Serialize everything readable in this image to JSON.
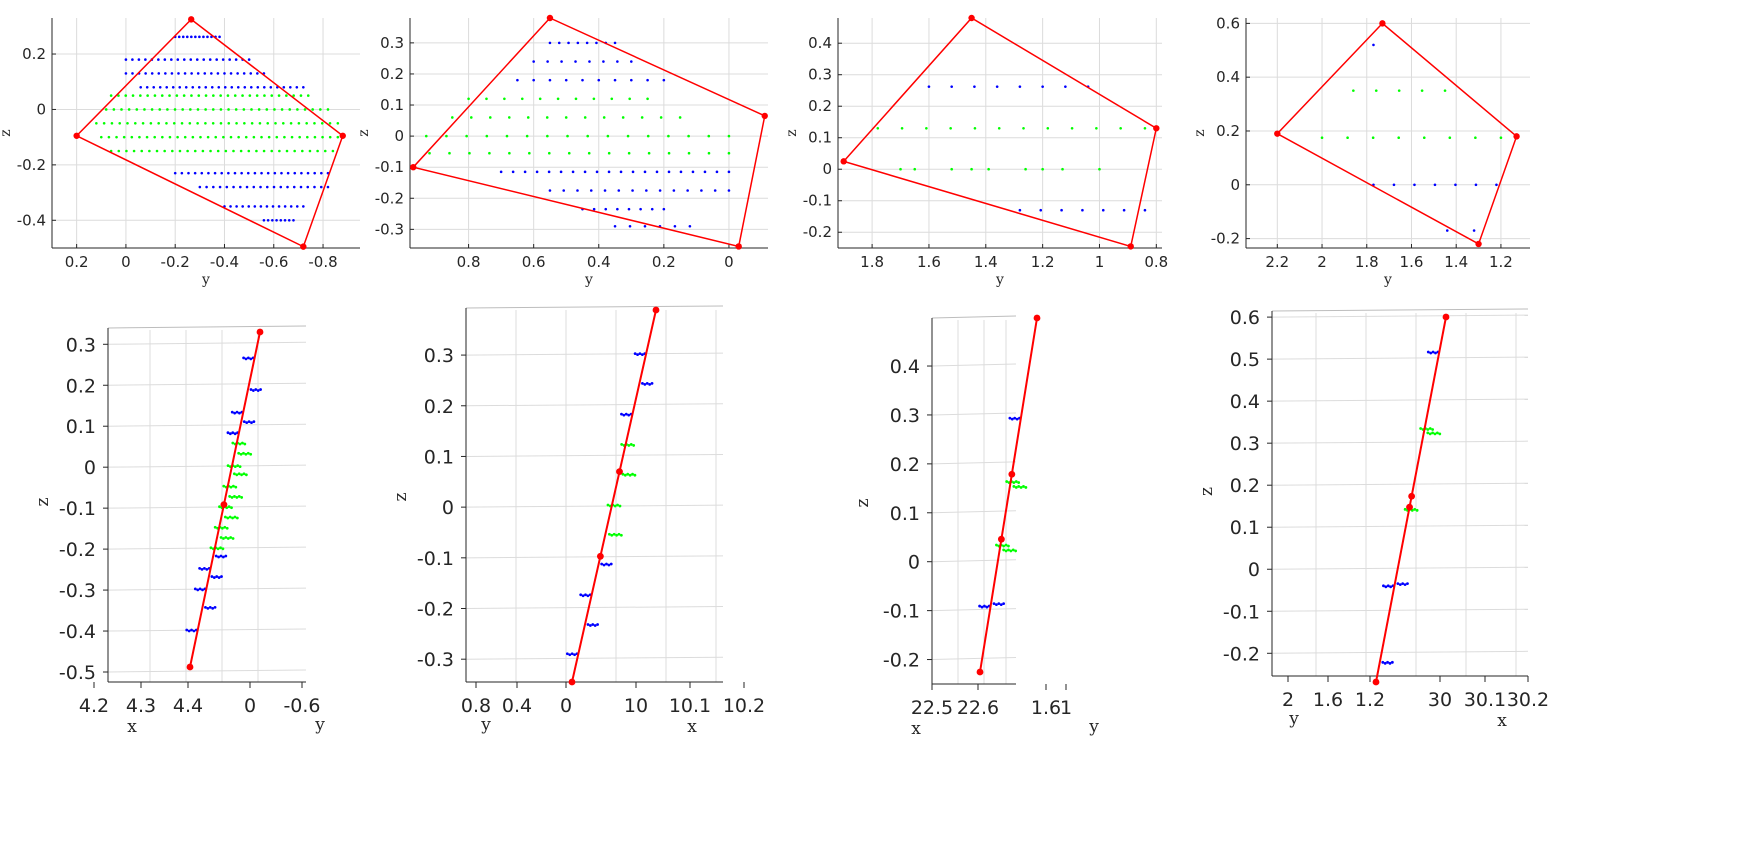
{
  "colors": {
    "hull": "#ff0000",
    "blue_points": "#0000ff",
    "green_points": "#00ff00",
    "axis": "#262626",
    "grid": "#dcdcdc"
  },
  "chart_data": [
    {
      "panel": "top-1",
      "type": "scatter",
      "title": "",
      "xlabel": "y",
      "ylabel": "z",
      "xlim": [
        0.3,
        -0.95
      ],
      "ylim": [
        -0.5,
        0.33
      ],
      "xticks": [
        0.2,
        0,
        -0.2,
        -0.4,
        -0.6,
        -0.8
      ],
      "xtick_labels": [
        "0.2",
        "0",
        "-0.2",
        "-0.4",
        "-0.6",
        "-0.8"
      ],
      "yticks": [
        0.2,
        0,
        -0.2,
        -0.4
      ],
      "ytick_labels": [
        "0.2",
        "0",
        "-0.2",
        "-0.4"
      ],
      "grid": true,
      "hull": [
        [
          0.2,
          -0.095
        ],
        [
          -0.265,
          0.325
        ],
        [
          -0.88,
          -0.095
        ],
        [
          -0.72,
          -0.495
        ]
      ],
      "blue_rows": [
        [
          0.262,
          -0.2,
          -0.38,
          12
        ],
        [
          0.18,
          0.0,
          -0.5,
          20
        ],
        [
          0.13,
          0.0,
          -0.56,
          22
        ],
        [
          0.08,
          -0.06,
          -0.72,
          26
        ],
        [
          -0.23,
          -0.2,
          -0.82,
          24
        ],
        [
          -0.28,
          -0.3,
          -0.82,
          20
        ],
        [
          -0.35,
          -0.4,
          -0.72,
          14
        ],
        [
          -0.4,
          -0.56,
          -0.68,
          8
        ]
      ],
      "green_rows": [
        [
          0.05,
          0.06,
          -0.74,
          28
        ],
        [
          0.0,
          0.08,
          -0.82,
          30
        ],
        [
          -0.05,
          0.12,
          -0.86,
          32
        ],
        [
          -0.1,
          0.1,
          -0.86,
          32
        ],
        [
          -0.15,
          0.06,
          -0.84,
          30
        ]
      ]
    },
    {
      "panel": "top-2",
      "type": "scatter",
      "title": "",
      "xlabel": "y",
      "ylabel": "z",
      "xlim": [
        0.98,
        -0.12
      ],
      "ylim": [
        -0.36,
        0.38
      ],
      "xticks": [
        0.8,
        0.6,
        0.4,
        0.2,
        0
      ],
      "xtick_labels": [
        "0.8",
        "0.6",
        "0.4",
        "0.2",
        "0"
      ],
      "yticks": [
        0.3,
        0.2,
        0.1,
        0,
        -0.1,
        -0.2,
        -0.3
      ],
      "ytick_labels": [
        "0.3",
        "0.2",
        "0.1",
        "0",
        "-0.1",
        "-0.2",
        "-0.3"
      ],
      "grid": true,
      "hull": [
        [
          0.97,
          -0.1
        ],
        [
          0.55,
          0.38
        ],
        [
          -0.11,
          0.065
        ],
        [
          -0.03,
          -0.355
        ]
      ],
      "blue_rows": [
        [
          0.3,
          0.55,
          0.35,
          8
        ],
        [
          0.24,
          0.6,
          0.3,
          8
        ],
        [
          0.18,
          0.65,
          0.2,
          10
        ],
        [
          -0.115,
          0.7,
          0.0,
          20
        ],
        [
          -0.175,
          0.55,
          0.0,
          14
        ],
        [
          -0.235,
          0.45,
          0.2,
          8
        ],
        [
          -0.29,
          0.35,
          0.12,
          6
        ]
      ],
      "green_rows": [
        [
          0.12,
          0.8,
          0.25,
          11
        ],
        [
          0.06,
          0.85,
          0.15,
          13
        ],
        [
          0.0,
          0.93,
          0.0,
          16
        ],
        [
          -0.055,
          0.92,
          0.0,
          16
        ]
      ]
    },
    {
      "panel": "top-3",
      "type": "scatter",
      "title": "",
      "xlabel": "y",
      "ylabel": "z",
      "xlim": [
        1.92,
        0.78
      ],
      "ylim": [
        -0.25,
        0.48
      ],
      "xticks": [
        1.8,
        1.6,
        1.4,
        1.2,
        1,
        0.8
      ],
      "xtick_labels": [
        "1.8",
        "1.6",
        "1.4",
        "1.2",
        "1",
        "0.8"
      ],
      "yticks": [
        0.4,
        0.3,
        0.2,
        0.1,
        0,
        -0.1,
        -0.2
      ],
      "ytick_labels": [
        "0.4",
        "0.3",
        "0.2",
        "0.1",
        "0",
        "-0.1",
        "-0.2"
      ],
      "grid": true,
      "hull": [
        [
          1.9,
          0.025
        ],
        [
          1.45,
          0.48
        ],
        [
          0.8,
          0.13
        ],
        [
          0.89,
          -0.245
        ]
      ],
      "blue_rows": [
        [
          0.262,
          1.6,
          1.04,
          8
        ],
        [
          -0.13,
          1.28,
          0.84,
          7
        ]
      ],
      "green_rows": [
        [
          0.13,
          1.78,
          0.84,
          12
        ],
        [
          0.0,
          1.7,
          1.2,
          3
        ],
        [
          0.0,
          1.65,
          1.0,
          6
        ]
      ]
    },
    {
      "panel": "top-4",
      "type": "scatter",
      "title": "",
      "xlabel": "y",
      "ylabel": "z",
      "xlim": [
        2.34,
        1.07
      ],
      "ylim": [
        -0.235,
        0.62
      ],
      "xticks": [
        2.2,
        2,
        1.8,
        1.6,
        1.4,
        1.2
      ],
      "xtick_labels": [
        "2.2",
        "2",
        "1.8",
        "1.6",
        "1.4",
        "1.2"
      ],
      "yticks": [
        0.6,
        0.4,
        0.2,
        0,
        -0.2
      ],
      "ytick_labels": [
        "0.6",
        "0.4",
        "0.2",
        "0",
        "-0.2"
      ],
      "grid": true,
      "hull": [
        [
          2.2,
          0.19
        ],
        [
          1.73,
          0.6
        ],
        [
          1.13,
          0.18
        ],
        [
          1.3,
          -0.22
        ]
      ],
      "blue_rows": [
        [
          0.52,
          1.77,
          1.77,
          1
        ],
        [
          0.0,
          1.77,
          1.22,
          7
        ],
        [
          -0.17,
          1.44,
          1.32,
          2
        ]
      ],
      "green_rows": [
        [
          0.35,
          1.86,
          1.45,
          5
        ],
        [
          0.175,
          2.0,
          1.2,
          8
        ]
      ]
    },
    {
      "panel": "bottom-1",
      "type": "scatter-3d",
      "title": "",
      "xlabel": "x",
      "ylabel": "y",
      "zlabel": "z",
      "zlim": [
        -0.5,
        0.33
      ],
      "zticks": [
        0.3,
        0.2,
        0.1,
        0,
        -0.1,
        -0.2,
        -0.3,
        -0.4,
        -0.5
      ],
      "ztick_labels": [
        "0.3",
        "0.2",
        "0.1",
        "0",
        "-0.1",
        "-0.2",
        "-0.3",
        "-0.4",
        "-0.5"
      ],
      "xtick_labels": [
        "4.2",
        "4.3",
        "4.4"
      ],
      "ytick_labels": [
        "0",
        "-0.6"
      ],
      "grid": true,
      "line_z": [
        -0.49,
        0.325
      ],
      "line_mid_z": -0.095,
      "blue_z": [
        0.262,
        0.185,
        0.13,
        0.107,
        0.08,
        -0.22,
        -0.25,
        -0.27,
        -0.3,
        -0.345,
        -0.4
      ],
      "green_z": [
        0.055,
        0.03,
        0.0,
        -0.02,
        -0.05,
        -0.075,
        -0.1,
        -0.125,
        -0.15,
        -0.175,
        -0.2
      ]
    },
    {
      "panel": "bottom-2",
      "type": "scatter-3d",
      "title": "",
      "xlabel": "x",
      "ylabel": "y",
      "zlabel": "z",
      "zlim": [
        -0.345,
        0.385
      ],
      "zticks": [
        0.3,
        0.2,
        0.1,
        0,
        -0.1,
        -0.2,
        -0.3
      ],
      "ztick_labels": [
        "0.3",
        "0.2",
        "0.1",
        "0",
        "-0.1",
        "-0.2",
        "-0.3"
      ],
      "ytick_labels": [
        "0.8",
        "0.4",
        "0"
      ],
      "xtick_labels": [
        "10",
        "10.1",
        "10.2"
      ],
      "grid": true,
      "line_z": [
        -0.345,
        0.38
      ],
      "line_mid_z": 0.065,
      "line_low_z": -0.1,
      "blue_z": [
        0.295,
        0.237,
        0.177,
        -0.115,
        -0.175,
        -0.233,
        -0.29
      ],
      "green_z": [
        0.118,
        0.06,
        0.0,
        -0.057
      ]
    },
    {
      "panel": "bottom-3",
      "type": "scatter-3d",
      "title": "",
      "xlabel": "x",
      "ylabel": "y",
      "zlabel": "z",
      "zlim": [
        -0.25,
        0.49
      ],
      "zticks": [
        0.4,
        0.3,
        0.2,
        0.1,
        0,
        -0.1,
        -0.2
      ],
      "ztick_labels": [
        "0.4",
        "0.3",
        "0.2",
        "0.1",
        "0",
        "-0.1",
        "-0.2"
      ],
      "xtick_labels": [
        "22.5",
        "22.6"
      ],
      "ytick_labels": [
        "1.6",
        "1"
      ],
      "grid": true,
      "line_z": [
        -0.245,
        0.48
      ],
      "line_mid_z": 0.16,
      "line_low_z": 0.027,
      "blue_z": [
        0.275,
        -0.105,
        -0.11
      ],
      "green_z": [
        0.145,
        0.135,
        0.015,
        0.005
      ]
    },
    {
      "panel": "bottom-4",
      "type": "scatter-3d",
      "title": "",
      "xlabel": "x",
      "ylabel": "y",
      "zlabel": "z",
      "zlim": [
        -0.235,
        0.605
      ],
      "zticks": [
        0.6,
        0.5,
        0.4,
        0.3,
        0.2,
        0.1,
        0,
        -0.1,
        -0.2
      ],
      "ztick_labels": [
        "0.6",
        "0.5",
        "0.4",
        "0.3",
        "0.2",
        "0.1",
        "0",
        "-0.1",
        "-0.2"
      ],
      "ytick_labels": [
        "2",
        "1.6",
        "1.2"
      ],
      "xtick_labels": [
        "30",
        "30.1",
        "30.2"
      ],
      "grid": true,
      "line_z": [
        -0.235,
        0.6
      ],
      "line_mid_z": 0.19,
      "line_low_z": 0.165,
      "blue_z": [
        0.52,
        -0.01,
        -0.015,
        -0.19
      ],
      "green_z": [
        0.345,
        0.335,
        0.16
      ]
    }
  ]
}
